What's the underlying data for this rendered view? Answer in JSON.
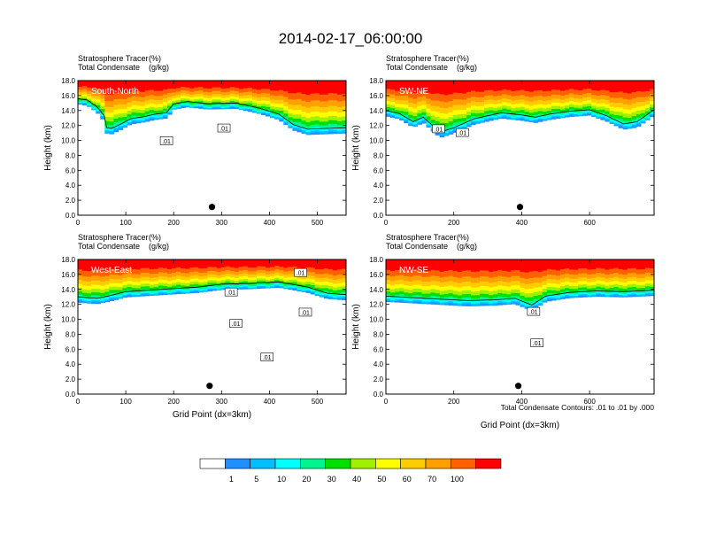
{
  "title": "2014-02-17_06:00:00",
  "colors": {
    "levels": [
      "#ffffff",
      "#1e90ff",
      "#00bfff",
      "#00ffff",
      "#00f591",
      "#00e000",
      "#a0f000",
      "#ffff00",
      "#ffcc00",
      "#ffa000",
      "#ff6000",
      "#ff0000"
    ],
    "contour": "#000000",
    "border": "#000000",
    "panel_label": "#ffffff"
  },
  "panel_titles": {
    "line1_left": "Stratosphere Tracer",
    "line1_right": "(%)",
    "line2_left": "Total Condensate",
    "line2_right": "(g/kg)"
  },
  "y_axis_label": "Height (km)",
  "x_axis_label": "Grid Point (dx=3km)",
  "contour_note": "Total Condensate Contours: .01 to .01 by .000",
  "colorbar": {
    "labels": [
      "1",
      "5",
      "10",
      "20",
      "30",
      "40",
      "50",
      "60",
      "70",
      "100"
    ]
  },
  "chart_data": [
    {
      "type": "heatmap",
      "panel": "South-North",
      "xlim": [
        0,
        560
      ],
      "ylim": [
        0,
        18
      ],
      "x_ticks": [
        "0",
        "100",
        "200",
        "300",
        "400",
        "500"
      ],
      "y_ticks": [
        "0.0",
        "2.0",
        "4.0",
        "6.0",
        "8.0",
        "10.0",
        "12.0",
        "14.0",
        "16.0",
        "18.0"
      ],
      "tracer_top": 18,
      "tracer_bottom": [
        [
          0,
          14.9
        ],
        [
          20,
          14.7
        ],
        [
          40,
          13.8
        ],
        [
          55,
          12.6
        ],
        [
          60,
          11.0
        ],
        [
          70,
          10.9
        ],
        [
          90,
          11.5
        ],
        [
          110,
          12.2
        ],
        [
          140,
          12.5
        ],
        [
          160,
          12.8
        ],
        [
          185,
          13.0
        ],
        [
          200,
          14.2
        ],
        [
          230,
          14.5
        ],
        [
          270,
          14.2
        ],
        [
          330,
          14.3
        ],
        [
          380,
          13.6
        ],
        [
          420,
          12.8
        ],
        [
          450,
          11.4
        ],
        [
          480,
          10.8
        ],
        [
          520,
          10.9
        ],
        [
          560,
          11.0
        ]
      ],
      "contour_labels": [
        {
          "x": 185,
          "y": 9.9,
          "text": ".01"
        },
        {
          "x": 305,
          "y": 11.6,
          "text": ".01"
        }
      ],
      "marker": {
        "x": 280,
        "y": 1.1
      }
    },
    {
      "type": "heatmap",
      "panel": "SW-NE",
      "xlim": [
        0,
        790
      ],
      "ylim": [
        0,
        18
      ],
      "x_ticks": [
        "0",
        "200",
        "400",
        "600"
      ],
      "y_ticks": [
        "0.0",
        "2.0",
        "4.0",
        "6.0",
        "8.0",
        "10.0",
        "12.0",
        "14.0",
        "16.0",
        "18.0"
      ],
      "tracer_top": 18,
      "tracer_bottom": [
        [
          0,
          13.3
        ],
        [
          40,
          12.9
        ],
        [
          80,
          11.8
        ],
        [
          110,
          12.4
        ],
        [
          140,
          11.2
        ],
        [
          160,
          10.4
        ],
        [
          200,
          11.0
        ],
        [
          260,
          12.2
        ],
        [
          300,
          12.6
        ],
        [
          340,
          13.0
        ],
        [
          400,
          12.7
        ],
        [
          440,
          12.4
        ],
        [
          480,
          12.8
        ],
        [
          540,
          13.2
        ],
        [
          600,
          13.4
        ],
        [
          650,
          12.6
        ],
        [
          700,
          11.5
        ],
        [
          740,
          11.8
        ],
        [
          790,
          13.4
        ]
      ],
      "contour_labels": [
        {
          "x": 155,
          "y": 11.5,
          "text": ".01"
        },
        {
          "x": 225,
          "y": 11.0,
          "text": ".01"
        }
      ],
      "marker": {
        "x": 395,
        "y": 1.1
      }
    },
    {
      "type": "heatmap",
      "panel": "West-East",
      "xlim": [
        0,
        560
      ],
      "ylim": [
        0,
        18
      ],
      "x_ticks": [
        "0",
        "100",
        "200",
        "300",
        "400",
        "500"
      ],
      "y_ticks": [
        "0.0",
        "2.0",
        "4.0",
        "6.0",
        "8.0",
        "10.0",
        "12.0",
        "14.0",
        "16.0",
        "18.0"
      ],
      "tracer_top": 18,
      "tracer_bottom": [
        [
          0,
          12.3
        ],
        [
          40,
          12.1
        ],
        [
          70,
          12.5
        ],
        [
          100,
          13.0
        ],
        [
          150,
          13.2
        ],
        [
          200,
          13.4
        ],
        [
          250,
          13.6
        ],
        [
          300,
          14.0
        ],
        [
          360,
          14.1
        ],
        [
          420,
          14.3
        ],
        [
          480,
          13.6
        ],
        [
          520,
          12.8
        ],
        [
          560,
          12.6
        ]
      ],
      "contour_labels": [
        {
          "x": 320,
          "y": 13.6,
          "text": ".01"
        },
        {
          "x": 465,
          "y": 16.2,
          "text": ".01"
        },
        {
          "x": 475,
          "y": 10.9,
          "text": ".01"
        },
        {
          "x": 330,
          "y": 9.4,
          "text": ".01"
        },
        {
          "x": 395,
          "y": 4.9,
          "text": ".01"
        }
      ],
      "marker": {
        "x": 275,
        "y": 1.1
      }
    },
    {
      "type": "heatmap",
      "panel": "NW-SE",
      "xlim": [
        0,
        790
      ],
      "ylim": [
        0,
        18
      ],
      "x_ticks": [
        "0",
        "200",
        "400",
        "600"
      ],
      "y_ticks": [
        "0.0",
        "2.0",
        "4.0",
        "6.0",
        "8.0",
        "10.0",
        "12.0",
        "14.0",
        "16.0",
        "18.0"
      ],
      "tracer_top": 18,
      "tracer_bottom": [
        [
          0,
          12.4
        ],
        [
          80,
          12.2
        ],
        [
          160,
          12.0
        ],
        [
          240,
          11.8
        ],
        [
          320,
          11.9
        ],
        [
          380,
          12.1
        ],
        [
          430,
          11.2
        ],
        [
          470,
          12.4
        ],
        [
          540,
          12.9
        ],
        [
          620,
          13.1
        ],
        [
          700,
          13.0
        ],
        [
          790,
          13.2
        ]
      ],
      "contour_labels": [
        {
          "x": 435,
          "y": 11.0,
          "text": ".01"
        },
        {
          "x": 445,
          "y": 6.8,
          "text": ".01"
        }
      ],
      "marker": {
        "x": 390,
        "y": 1.1
      }
    }
  ]
}
